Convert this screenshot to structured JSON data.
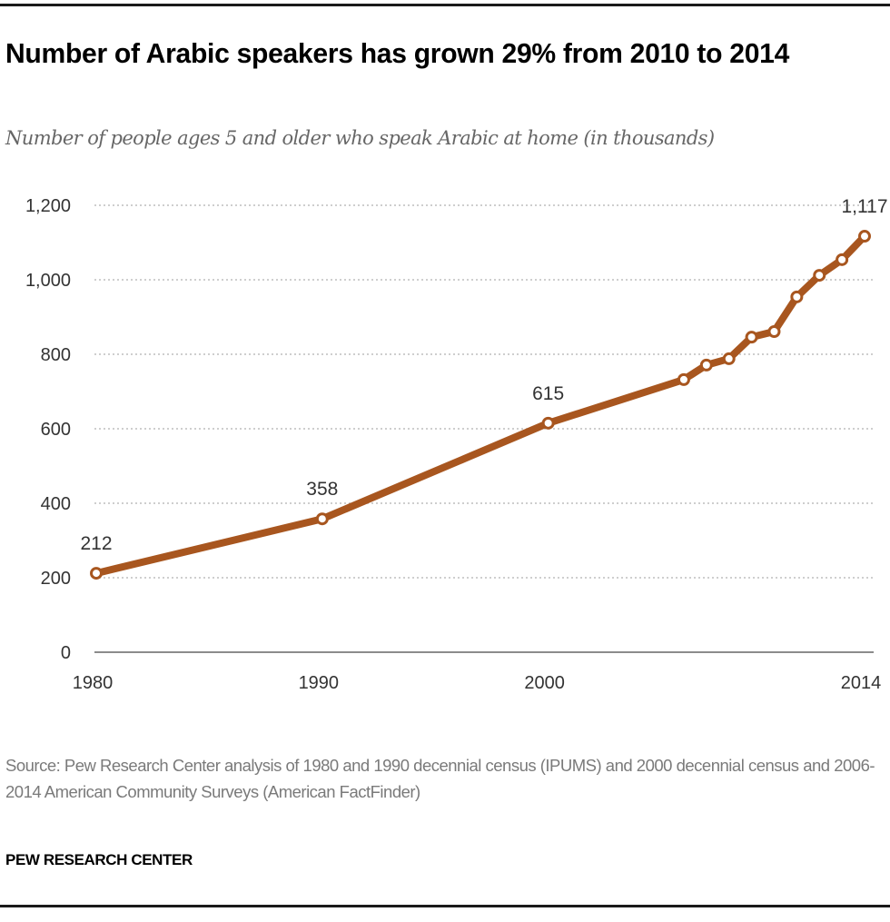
{
  "title": "Number of Arabic speakers has grown 29% from 2010 to 2014",
  "subtitle": "Number of people ages 5 and older who speak Arabic at home (in thousands)",
  "source": "Source: Pew Research Center analysis of 1980 and 1990 decennial census (IPUMS) and 2000 decennial census and 2006-2014 American Community Surveys (American FactFinder)",
  "brand": "PEW RESEARCH CENTER",
  "colors": {
    "line": "#A8561F",
    "grid": "#bdbdbd",
    "axis": "#8c8c8c",
    "text": "#333333"
  },
  "chart_data": {
    "type": "line",
    "title": "Number of Arabic speakers has grown 29% from 2010 to 2014",
    "subtitle": "Number of people ages 5 and older who speak Arabic at home (in thousands)",
    "xlabel": "",
    "ylabel": "",
    "xlim": [
      1980,
      2014
    ],
    "ylim": [
      0,
      1200
    ],
    "grid": true,
    "legend": "none",
    "yticks": [
      0,
      200,
      400,
      600,
      800,
      1000,
      1200
    ],
    "ytick_labels": [
      "0",
      "200",
      "400",
      "600",
      "800",
      "1,000",
      "1,200"
    ],
    "xticks": [
      1980,
      1990,
      2000,
      2014
    ],
    "xtick_labels": [
      "1980",
      "1990",
      "2000",
      "2014"
    ],
    "series": [
      {
        "name": "Arabic speakers (thousands)",
        "x": [
          1980,
          1990,
          2000,
          2006,
          2007,
          2008,
          2009,
          2010,
          2011,
          2012,
          2013,
          2014
        ],
        "values": [
          212,
          358,
          615,
          732,
          771,
          788,
          846,
          861,
          954,
          1012,
          1054,
          1117
        ]
      }
    ],
    "annotations": [
      {
        "x": 1980,
        "label": "212"
      },
      {
        "x": 1990,
        "label": "358"
      },
      {
        "x": 2000,
        "label": "615"
      },
      {
        "x": 2014,
        "label": "1,117"
      }
    ]
  }
}
